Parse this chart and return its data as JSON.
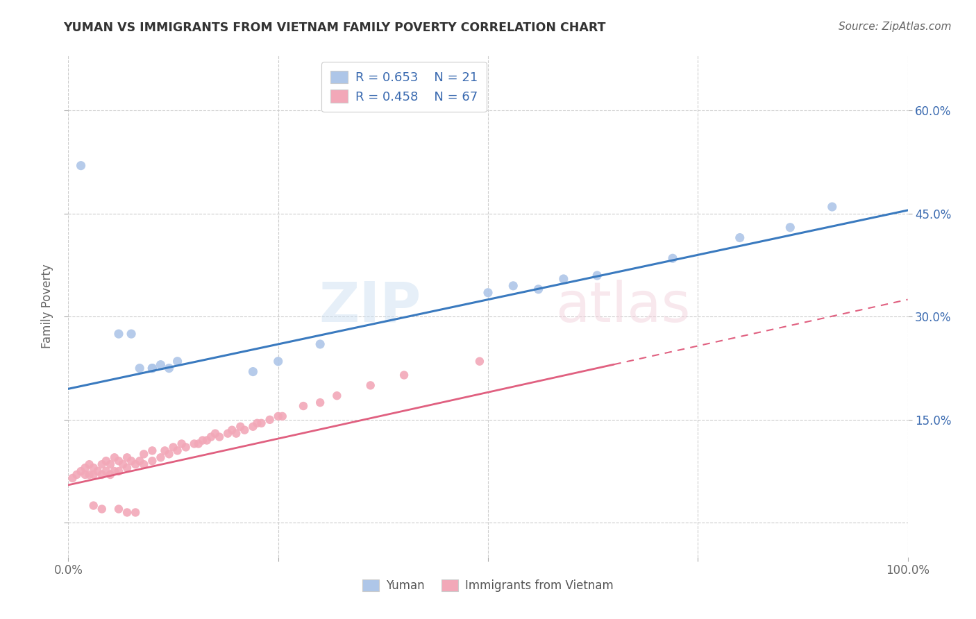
{
  "title": "YUMAN VS IMMIGRANTS FROM VIETNAM FAMILY POVERTY CORRELATION CHART",
  "source": "Source: ZipAtlas.com",
  "ylabel": "Family Poverty",
  "xlim": [
    0.0,
    1.0
  ],
  "ylim": [
    -0.05,
    0.68
  ],
  "color_blue": "#aec6e8",
  "color_pink": "#f2a8b8",
  "color_blue_line": "#3a7abf",
  "color_pink_line": "#e06080",
  "color_text_blue": "#3a6ab0",
  "blue_scatter_x": [
    0.015,
    0.06,
    0.075,
    0.085,
    0.1,
    0.12,
    0.22,
    0.3,
    0.5,
    0.53,
    0.56,
    0.59,
    0.63,
    0.72,
    0.8,
    0.86,
    0.91,
    0.1,
    0.11,
    0.13,
    0.25
  ],
  "blue_scatter_y": [
    0.52,
    0.275,
    0.275,
    0.225,
    0.225,
    0.225,
    0.22,
    0.26,
    0.335,
    0.345,
    0.34,
    0.355,
    0.36,
    0.385,
    0.415,
    0.43,
    0.46,
    0.225,
    0.23,
    0.235,
    0.235
  ],
  "pink_scatter_x": [
    0.005,
    0.01,
    0.015,
    0.02,
    0.025,
    0.02,
    0.025,
    0.03,
    0.03,
    0.035,
    0.04,
    0.04,
    0.045,
    0.045,
    0.05,
    0.05,
    0.055,
    0.055,
    0.06,
    0.06,
    0.065,
    0.07,
    0.07,
    0.075,
    0.08,
    0.085,
    0.09,
    0.09,
    0.1,
    0.1,
    0.11,
    0.115,
    0.12,
    0.125,
    0.13,
    0.135,
    0.14,
    0.15,
    0.155,
    0.16,
    0.165,
    0.17,
    0.175,
    0.18,
    0.19,
    0.195,
    0.2,
    0.205,
    0.21,
    0.22,
    0.225,
    0.23,
    0.24,
    0.25,
    0.255,
    0.28,
    0.3,
    0.32,
    0.36,
    0.4,
    0.49,
    0.03,
    0.04,
    0.06,
    0.07,
    0.08
  ],
  "pink_scatter_y": [
    0.065,
    0.07,
    0.075,
    0.07,
    0.07,
    0.08,
    0.085,
    0.07,
    0.08,
    0.075,
    0.07,
    0.085,
    0.075,
    0.09,
    0.07,
    0.085,
    0.075,
    0.095,
    0.075,
    0.09,
    0.085,
    0.08,
    0.095,
    0.09,
    0.085,
    0.09,
    0.085,
    0.1,
    0.09,
    0.105,
    0.095,
    0.105,
    0.1,
    0.11,
    0.105,
    0.115,
    0.11,
    0.115,
    0.115,
    0.12,
    0.12,
    0.125,
    0.13,
    0.125,
    0.13,
    0.135,
    0.13,
    0.14,
    0.135,
    0.14,
    0.145,
    0.145,
    0.15,
    0.155,
    0.155,
    0.17,
    0.175,
    0.185,
    0.2,
    0.215,
    0.235,
    0.025,
    0.02,
    0.02,
    0.015,
    0.015
  ],
  "blue_line_x": [
    0.0,
    1.0
  ],
  "blue_line_y": [
    0.195,
    0.455
  ],
  "pink_line_x": [
    0.0,
    1.0
  ],
  "pink_line_y": [
    0.055,
    0.325
  ],
  "pink_line_dash_end": 0.68,
  "ytick_right_labels": [
    "15.0%",
    "30.0%",
    "45.0%",
    "60.0%"
  ],
  "ytick_right_vals": [
    0.15,
    0.3,
    0.45,
    0.6
  ]
}
